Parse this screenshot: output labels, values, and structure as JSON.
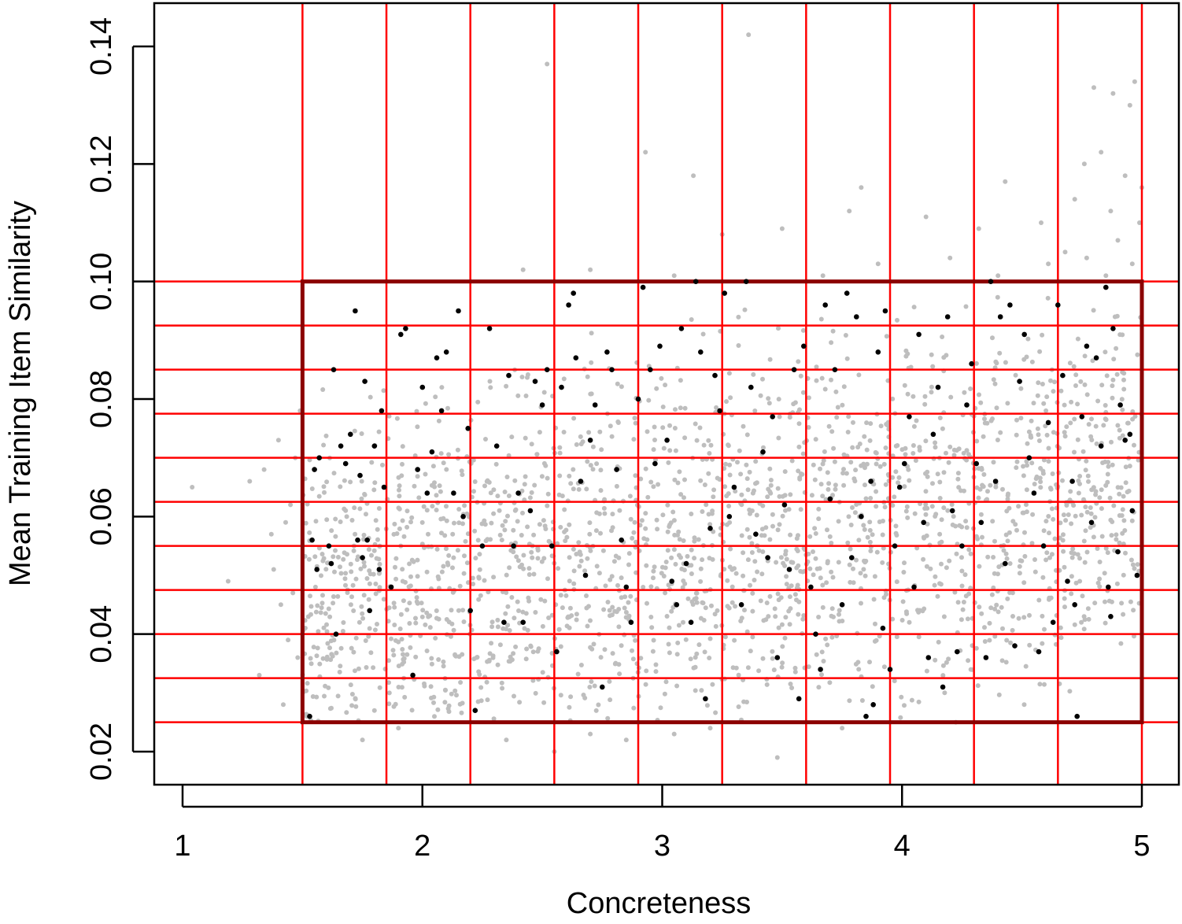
{
  "chart_data": {
    "type": "scatter",
    "title": "",
    "xlabel": "Concreteness",
    "ylabel": "Mean Training Item Similarity",
    "xlim": [
      0.88,
      5.15
    ],
    "ylim": [
      0.0145,
      0.147
    ],
    "x_ticks": [
      1,
      2,
      3,
      4,
      5
    ],
    "x_tick_labels": [
      "1",
      "2",
      "3",
      "4",
      "5"
    ],
    "y_ticks": [
      0.02,
      0.04,
      0.06,
      0.08,
      0.1,
      0.12,
      0.14
    ],
    "y_tick_labels": [
      "0.02",
      "0.04",
      "0.06",
      "0.08",
      "0.10",
      "0.12",
      "0.14"
    ],
    "grid": false,
    "legend": "none",
    "colors": {
      "all_points": "#bebebe",
      "selected_points": "#000000",
      "bin_lines": "#ff0000",
      "selection_box": "#8b0000"
    },
    "bin_boundaries_x": [
      1.5,
      1.85,
      2.2,
      2.55,
      2.9,
      3.25,
      3.6,
      3.95,
      4.3,
      4.65,
      5.0
    ],
    "bin_boundaries_y": [
      0.025,
      0.0325,
      0.04,
      0.0475,
      0.055,
      0.0625,
      0.07,
      0.0775,
      0.085,
      0.0925,
      0.1
    ],
    "selection_box": {
      "x": [
        1.5,
        5.0
      ],
      "y": [
        0.025,
        0.1
      ]
    },
    "series": [
      {
        "role": "all items",
        "color": "#bebebe",
        "points": [
          [
            1.04,
            0.065
          ],
          [
            1.19,
            0.049
          ],
          [
            1.28,
            0.066
          ],
          [
            1.32,
            0.033
          ],
          [
            1.34,
            0.068
          ],
          [
            1.37,
            0.057
          ],
          [
            1.38,
            0.051
          ],
          [
            1.4,
            0.073
          ],
          [
            1.41,
            0.045
          ],
          [
            1.42,
            0.028
          ],
          [
            1.43,
            0.059
          ],
          [
            1.44,
            0.039
          ],
          [
            1.45,
            0.062
          ],
          [
            1.46,
            0.047
          ],
          [
            1.47,
            0.07
          ],
          [
            1.48,
            0.036
          ],
          [
            1.49,
            0.078
          ],
          [
            2.52,
            0.137
          ],
          [
            2.93,
            0.122
          ],
          [
            3.13,
            0.118
          ],
          [
            3.36,
            0.142
          ],
          [
            3.25,
            0.108
          ],
          [
            3.5,
            0.109
          ],
          [
            3.78,
            0.112
          ],
          [
            3.83,
            0.116
          ],
          [
            4.1,
            0.111
          ],
          [
            4.32,
            0.109
          ],
          [
            4.43,
            0.117
          ],
          [
            4.58,
            0.11
          ],
          [
            4.8,
            0.133
          ],
          [
            4.88,
            0.132
          ],
          [
            4.97,
            0.134
          ],
          [
            4.95,
            0.13
          ],
          [
            5.0,
            0.116
          ],
          [
            4.76,
            0.12
          ],
          [
            4.83,
            0.122
          ],
          [
            4.93,
            0.118
          ],
          [
            4.72,
            0.114
          ],
          [
            4.87,
            0.112
          ],
          [
            4.99,
            0.11
          ],
          [
            4.68,
            0.105
          ],
          [
            4.77,
            0.104
          ],
          [
            4.9,
            0.107
          ],
          [
            4.96,
            0.103
          ],
          [
            4.61,
            0.103
          ],
          [
            4.85,
            0.101
          ],
          [
            4.4,
            0.101
          ],
          [
            4.2,
            0.104
          ],
          [
            3.9,
            0.103
          ],
          [
            3.67,
            0.101
          ],
          [
            3.05,
            0.101
          ],
          [
            2.7,
            0.102
          ],
          [
            2.42,
            0.102
          ],
          [
            1.8,
            0.027
          ],
          [
            1.9,
            0.024
          ],
          [
            2.05,
            0.026
          ],
          [
            2.35,
            0.022
          ],
          [
            2.55,
            0.02
          ],
          [
            2.7,
            0.023
          ],
          [
            2.85,
            0.022
          ],
          [
            3.2,
            0.024
          ],
          [
            3.48,
            0.019
          ],
          [
            3.75,
            0.024
          ],
          [
            3.05,
            0.023
          ],
          [
            1.75,
            0.022
          ]
        ]
      },
      {
        "role": "selected items",
        "color": "#000000",
        "points": [
          [
            1.55,
            0.068
          ],
          [
            1.57,
            0.07
          ],
          [
            1.54,
            0.056
          ],
          [
            1.56,
            0.051
          ],
          [
            1.53,
            0.026
          ],
          [
            1.61,
            0.055
          ],
          [
            1.62,
            0.052
          ],
          [
            1.63,
            0.085
          ],
          [
            1.64,
            0.04
          ],
          [
            1.66,
            0.072
          ],
          [
            1.68,
            0.069
          ],
          [
            1.7,
            0.074
          ],
          [
            1.72,
            0.095
          ],
          [
            1.73,
            0.056
          ],
          [
            1.74,
            0.067
          ],
          [
            1.75,
            0.053
          ],
          [
            1.76,
            0.083
          ],
          [
            1.77,
            0.056
          ],
          [
            1.78,
            0.044
          ],
          [
            1.8,
            0.072
          ],
          [
            1.82,
            0.051
          ],
          [
            1.83,
            0.078
          ],
          [
            1.84,
            0.065
          ],
          [
            1.87,
            0.048
          ],
          [
            1.91,
            0.091
          ],
          [
            1.93,
            0.092
          ],
          [
            1.96,
            0.033
          ],
          [
            1.98,
            0.068
          ],
          [
            2.0,
            0.082
          ],
          [
            2.02,
            0.064
          ],
          [
            2.04,
            0.071
          ],
          [
            2.06,
            0.087
          ],
          [
            2.08,
            0.078
          ],
          [
            2.1,
            0.088
          ],
          [
            2.13,
            0.064
          ],
          [
            2.15,
            0.095
          ],
          [
            2.17,
            0.06
          ],
          [
            2.19,
            0.075
          ],
          [
            2.2,
            0.044
          ],
          [
            2.22,
            0.027
          ],
          [
            2.25,
            0.055
          ],
          [
            2.28,
            0.092
          ],
          [
            2.31,
            0.072
          ],
          [
            2.34,
            0.042
          ],
          [
            2.36,
            0.084
          ],
          [
            2.38,
            0.055
          ],
          [
            2.4,
            0.064
          ],
          [
            2.42,
            0.042
          ],
          [
            2.45,
            0.061
          ],
          [
            2.47,
            0.083
          ],
          [
            2.5,
            0.079
          ],
          [
            2.52,
            0.085
          ],
          [
            2.54,
            0.055
          ],
          [
            2.56,
            0.037
          ],
          [
            2.58,
            0.082
          ],
          [
            2.61,
            0.096
          ],
          [
            2.63,
            0.098
          ],
          [
            2.64,
            0.087
          ],
          [
            2.66,
            0.066
          ],
          [
            2.68,
            0.05
          ],
          [
            2.7,
            0.073
          ],
          [
            2.72,
            0.079
          ],
          [
            2.75,
            0.031
          ],
          [
            2.77,
            0.088
          ],
          [
            2.79,
            0.085
          ],
          [
            2.81,
            0.068
          ],
          [
            2.83,
            0.056
          ],
          [
            2.85,
            0.048
          ],
          [
            2.87,
            0.042
          ],
          [
            2.9,
            0.08
          ],
          [
            2.92,
            0.099
          ],
          [
            2.95,
            0.085
          ],
          [
            2.97,
            0.069
          ],
          [
            2.99,
            0.089
          ],
          [
            3.02,
            0.073
          ],
          [
            3.04,
            0.049
          ],
          [
            3.06,
            0.045
          ],
          [
            3.08,
            0.092
          ],
          [
            3.1,
            0.052
          ],
          [
            3.12,
            0.042
          ],
          [
            3.14,
            0.1
          ],
          [
            3.16,
            0.088
          ],
          [
            3.18,
            0.029
          ],
          [
            3.2,
            0.058
          ],
          [
            3.22,
            0.084
          ],
          [
            3.24,
            0.078
          ],
          [
            3.26,
            0.098
          ],
          [
            3.28,
            0.06
          ],
          [
            3.3,
            0.065
          ],
          [
            3.33,
            0.045
          ],
          [
            3.35,
            0.1
          ],
          [
            3.37,
            0.082
          ],
          [
            3.39,
            0.057
          ],
          [
            3.42,
            0.071
          ],
          [
            3.44,
            0.053
          ],
          [
            3.46,
            0.077
          ],
          [
            3.48,
            0.036
          ],
          [
            3.51,
            0.062
          ],
          [
            3.53,
            0.051
          ],
          [
            3.55,
            0.085
          ],
          [
            3.57,
            0.029
          ],
          [
            3.59,
            0.089
          ],
          [
            3.62,
            0.048
          ],
          [
            3.64,
            0.04
          ],
          [
            3.66,
            0.034
          ],
          [
            3.68,
            0.096
          ],
          [
            3.7,
            0.063
          ],
          [
            3.72,
            0.085
          ],
          [
            3.75,
            0.045
          ],
          [
            3.77,
            0.098
          ],
          [
            3.79,
            0.053
          ],
          [
            3.81,
            0.094
          ],
          [
            3.83,
            0.06
          ],
          [
            3.85,
            0.026
          ],
          [
            3.87,
            0.066
          ],
          [
            3.88,
            0.028
          ],
          [
            3.9,
            0.088
          ],
          [
            3.92,
            0.041
          ],
          [
            3.93,
            0.095
          ],
          [
            3.95,
            0.034
          ],
          [
            3.97,
            0.055
          ],
          [
            3.99,
            0.065
          ],
          [
            4.01,
            0.069
          ],
          [
            4.03,
            0.077
          ],
          [
            4.05,
            0.048
          ],
          [
            4.07,
            0.091
          ],
          [
            4.09,
            0.059
          ],
          [
            4.11,
            0.036
          ],
          [
            4.13,
            0.074
          ],
          [
            4.15,
            0.082
          ],
          [
            4.17,
            0.031
          ],
          [
            4.19,
            0.094
          ],
          [
            4.21,
            0.061
          ],
          [
            4.23,
            0.037
          ],
          [
            4.25,
            0.055
          ],
          [
            4.27,
            0.079
          ],
          [
            4.29,
            0.086
          ],
          [
            4.31,
            0.069
          ],
          [
            4.33,
            0.059
          ],
          [
            4.35,
            0.036
          ],
          [
            4.37,
            0.1
          ],
          [
            4.39,
            0.066
          ],
          [
            4.41,
            0.094
          ],
          [
            4.43,
            0.052
          ],
          [
            4.45,
            0.096
          ],
          [
            4.47,
            0.038
          ],
          [
            4.49,
            0.083
          ],
          [
            4.51,
            0.091
          ],
          [
            4.53,
            0.07
          ],
          [
            4.55,
            0.064
          ],
          [
            4.57,
            0.037
          ],
          [
            4.59,
            0.055
          ],
          [
            4.61,
            0.076
          ],
          [
            4.63,
            0.042
          ],
          [
            4.65,
            0.096
          ],
          [
            4.67,
            0.084
          ],
          [
            4.69,
            0.049
          ],
          [
            4.71,
            0.066
          ],
          [
            4.72,
            0.045
          ],
          [
            4.73,
            0.026
          ],
          [
            4.75,
            0.077
          ],
          [
            4.77,
            0.089
          ],
          [
            4.79,
            0.059
          ],
          [
            4.81,
            0.087
          ],
          [
            4.83,
            0.072
          ],
          [
            4.85,
            0.099
          ],
          [
            4.86,
            0.048
          ],
          [
            4.87,
            0.043
          ],
          [
            4.88,
            0.092
          ],
          [
            4.9,
            0.054
          ],
          [
            4.91,
            0.079
          ],
          [
            4.93,
            0.073
          ],
          [
            4.95,
            0.074
          ],
          [
            4.96,
            0.061
          ],
          [
            4.98,
            0.05
          ]
        ]
      }
    ]
  }
}
